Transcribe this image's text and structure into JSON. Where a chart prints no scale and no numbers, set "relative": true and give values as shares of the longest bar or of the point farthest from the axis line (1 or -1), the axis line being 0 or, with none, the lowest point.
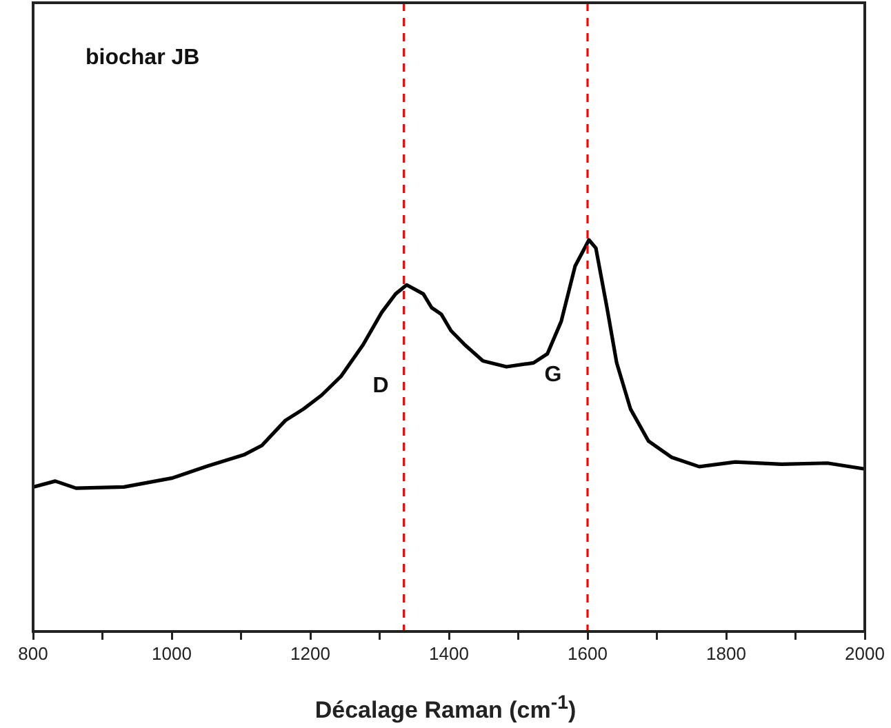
{
  "chart_data": {
    "type": "line",
    "relative": true,
    "xlabel": "Décalage Raman (cm$^{-1}$)",
    "xlim": [
      800,
      2000
    ],
    "xticks": [
      800,
      {
        "value": 900,
        "label": null
      },
      1000,
      {
        "value": 1100,
        "label": null
      },
      1200,
      {
        "value": 1300,
        "label": null
      },
      1400,
      {
        "value": 1500,
        "label": null
      },
      1600,
      {
        "value": 1700,
        "label": null
      },
      1800,
      {
        "value": 1900,
        "label": null
      },
      2000
    ],
    "series": [
      {
        "color": "#000000",
        "x": [
          800,
          832,
          862,
          931,
          1001,
          1051,
          1104,
          1130,
          1164,
          1190,
          1216,
          1244,
          1276,
          1303,
          1323,
          1339,
          1363,
          1375,
          1389,
          1403,
          1423,
          1449,
          1483,
          1522,
          1542,
          1562,
          1582,
          1602,
          1612,
          1628,
          1642,
          1662,
          1688,
          1721,
          1761,
          1813,
          1880,
          1946,
          2000
        ],
        "values": [
          0.369,
          0.384,
          0.366,
          0.369,
          0.392,
          0.422,
          0.451,
          0.475,
          0.539,
          0.568,
          0.603,
          0.651,
          0.732,
          0.815,
          0.862,
          0.885,
          0.862,
          0.827,
          0.81,
          0.768,
          0.732,
          0.691,
          0.676,
          0.686,
          0.709,
          0.792,
          0.933,
          1,
          0.979,
          0.827,
          0.686,
          0.568,
          0.486,
          0.445,
          0.421,
          0.433,
          0.427,
          0.43,
          0.415
        ]
      }
    ],
    "ref_lines": [
      {
        "axis": "x",
        "value": 1335,
        "color": "#ff0000",
        "line_style": "dashed"
      },
      {
        "axis": "x",
        "value": 1600,
        "color": "#ff0000",
        "line_style": "dashed"
      }
    ],
    "annotations": [
      "biochar JB",
      "D",
      "G"
    ],
    "grid": false,
    "legend": false,
    "marker": "none",
    "line_style": "solid"
  }
}
